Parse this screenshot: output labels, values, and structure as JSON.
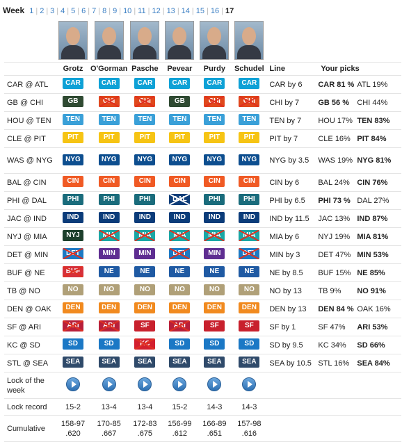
{
  "nav": {
    "label": "Week",
    "weeks": [
      "1",
      "2",
      "3",
      "4",
      "5",
      "6",
      "7",
      "8",
      "9",
      "10",
      "11",
      "12",
      "13",
      "14",
      "15",
      "16"
    ],
    "current": "17"
  },
  "headers": {
    "pickers": [
      "Grotz",
      "O'Gorman",
      "Pasche",
      "Pevear",
      "Purdy",
      "Schudel"
    ],
    "line": "Line",
    "your_picks": "Your picks"
  },
  "colors": {
    "CAR": "#0ea1d6",
    "GB": "#2f4a32",
    "CHI": "#e0481c",
    "TEN": "#3aa0d8",
    "PIT": "#f6c414",
    "NYG": "#0d4e8f",
    "CIN": "#f05a24",
    "PHI": "#1a6c7c",
    "DAL": "#0f3d78",
    "IND": "#0b3c7a",
    "NYJ": "#1c3f2c",
    "MIA": "#1aa7a5",
    "DET": "#1c79c4",
    "MIN": "#5e2d91",
    "BUF": "#d6303a",
    "NE": "#1f5aa3",
    "NO": "#b0a078",
    "DEN": "#f18a1f",
    "ARI": "#b81f3a",
    "SF": "#c8202d",
    "SD": "#1b78c5",
    "KC": "#d3202f",
    "SEA": "#2f4a6a"
  },
  "games": [
    {
      "label": "CAR @ ATL",
      "picks": [
        [
          "CAR",
          0
        ],
        [
          "CAR",
          0
        ],
        [
          "CAR",
          0
        ],
        [
          "CAR",
          0
        ],
        [
          "CAR",
          0
        ],
        [
          "CAR",
          0
        ]
      ],
      "line": "CAR by 6",
      "yp": [
        [
          "CAR 81 %",
          1
        ],
        [
          "ATL 19%",
          0
        ]
      ]
    },
    {
      "label": "GB @ CHI",
      "picks": [
        [
          "GB",
          0
        ],
        [
          "CHI",
          1
        ],
        [
          "CHI",
          1
        ],
        [
          "GB",
          0
        ],
        [
          "CHI",
          1
        ],
        [
          "CHI",
          1
        ]
      ],
      "line": "CHI by 7",
      "yp": [
        [
          "GB 56 %",
          1
        ],
        [
          "CHI 44%",
          0
        ]
      ]
    },
    {
      "label": "HOU @ TEN",
      "picks": [
        [
          "TEN",
          0
        ],
        [
          "TEN",
          0
        ],
        [
          "TEN",
          0
        ],
        [
          "TEN",
          0
        ],
        [
          "TEN",
          0
        ],
        [
          "TEN",
          0
        ]
      ],
      "line": "TEN by 7",
      "yp": [
        [
          "HOU 17%",
          0
        ],
        [
          "TEN 83%",
          1
        ]
      ]
    },
    {
      "label": "CLE @ PIT",
      "picks": [
        [
          "PIT",
          0
        ],
        [
          "PIT",
          0
        ],
        [
          "PIT",
          0
        ],
        [
          "PIT",
          0
        ],
        [
          "PIT",
          0
        ],
        [
          "PIT",
          0
        ]
      ],
      "line": "PIT by 7",
      "yp": [
        [
          "CLE 16%",
          0
        ],
        [
          "PIT 84%",
          1
        ]
      ]
    },
    {
      "label": "WAS @ NYG",
      "tall": true,
      "picks": [
        [
          "NYG",
          0
        ],
        [
          "NYG",
          0
        ],
        [
          "NYG",
          0
        ],
        [
          "NYG",
          0
        ],
        [
          "NYG",
          0
        ],
        [
          "NYG",
          0
        ]
      ],
      "line": "NYG by 3.5",
      "yp": [
        [
          "WAS 19%",
          0
        ],
        [
          "NYG 81%",
          1
        ]
      ]
    },
    {
      "label": "BAL @ CIN",
      "picks": [
        [
          "CIN",
          0
        ],
        [
          "CIN",
          0
        ],
        [
          "CIN",
          0
        ],
        [
          "CIN",
          0
        ],
        [
          "CIN",
          0
        ],
        [
          "CIN",
          0
        ]
      ],
      "line": "CIN by 6",
      "yp": [
        [
          "BAL 24%",
          0
        ],
        [
          "CIN 76%",
          1
        ]
      ]
    },
    {
      "label": "PHI @ DAL",
      "picks": [
        [
          "PHI",
          0
        ],
        [
          "PHI",
          0
        ],
        [
          "PHI",
          0
        ],
        [
          "DAL",
          1
        ],
        [
          "PHI",
          0
        ],
        [
          "PHI",
          0
        ]
      ],
      "line": "PHI by 6.5",
      "yp": [
        [
          "PHI 73 %",
          1
        ],
        [
          "DAL 27%",
          0
        ]
      ]
    },
    {
      "label": "JAC @ IND",
      "picks": [
        [
          "IND",
          0
        ],
        [
          "IND",
          0
        ],
        [
          "IND",
          0
        ],
        [
          "IND",
          0
        ],
        [
          "IND",
          0
        ],
        [
          "IND",
          0
        ]
      ],
      "line": "IND by 11.5",
      "yp": [
        [
          "JAC 13%",
          0
        ],
        [
          "IND 87%",
          1
        ]
      ]
    },
    {
      "label": "NYJ @ MIA",
      "picks": [
        [
          "NYJ",
          0
        ],
        [
          "MIA",
          1
        ],
        [
          "MIA",
          1
        ],
        [
          "MIA",
          1
        ],
        [
          "MIA",
          1
        ],
        [
          "MIA",
          1
        ]
      ],
      "line": "MIA by 6",
      "yp": [
        [
          "NYJ 19%",
          0
        ],
        [
          "MIA 81%",
          1
        ]
      ]
    },
    {
      "label": "DET @ MIN",
      "picks": [
        [
          "DET",
          1
        ],
        [
          "MIN",
          0
        ],
        [
          "MIN",
          0
        ],
        [
          "DET",
          1
        ],
        [
          "MIN",
          0
        ],
        [
          "DET",
          1
        ]
      ],
      "line": "MIN by 3",
      "yp": [
        [
          "DET 47%",
          0
        ],
        [
          "MIN 53%",
          1
        ]
      ]
    },
    {
      "label": "BUF @ NE",
      "picks": [
        [
          "BUF",
          1
        ],
        [
          "NE",
          0
        ],
        [
          "NE",
          0
        ],
        [
          "NE",
          0
        ],
        [
          "NE",
          0
        ],
        [
          "NE",
          0
        ]
      ],
      "line": "NE by 8.5",
      "yp": [
        [
          "BUF 15%",
          0
        ],
        [
          "NE 85%",
          1
        ]
      ]
    },
    {
      "label": "TB @ NO",
      "picks": [
        [
          "NO",
          0
        ],
        [
          "NO",
          0
        ],
        [
          "NO",
          0
        ],
        [
          "NO",
          0
        ],
        [
          "NO",
          0
        ],
        [
          "NO",
          0
        ]
      ],
      "line": "NO by 13",
      "yp": [
        [
          "TB 9%",
          0
        ],
        [
          "NO 91%",
          1
        ]
      ]
    },
    {
      "label": "DEN @ OAK",
      "picks": [
        [
          "DEN",
          0
        ],
        [
          "DEN",
          0
        ],
        [
          "DEN",
          0
        ],
        [
          "DEN",
          0
        ],
        [
          "DEN",
          0
        ],
        [
          "DEN",
          0
        ]
      ],
      "line": "DEN by 13",
      "yp": [
        [
          "DEN 84 %",
          1
        ],
        [
          "OAK 16%",
          0
        ]
      ]
    },
    {
      "label": "SF @ ARI",
      "picks": [
        [
          "ARI",
          1
        ],
        [
          "ARI",
          1
        ],
        [
          "SF",
          0
        ],
        [
          "ARI",
          1
        ],
        [
          "SF",
          0
        ],
        [
          "SF",
          0
        ]
      ],
      "line": "SF by 1",
      "yp": [
        [
          "SF 47%",
          0
        ],
        [
          "ARI 53%",
          1
        ]
      ]
    },
    {
      "label": "KC @ SD",
      "picks": [
        [
          "SD",
          0
        ],
        [
          "SD",
          0
        ],
        [
          "KC",
          1
        ],
        [
          "SD",
          0
        ],
        [
          "SD",
          0
        ],
        [
          "SD",
          0
        ]
      ],
      "line": "SD by 9.5",
      "yp": [
        [
          "KC 34%",
          0
        ],
        [
          "SD 66%",
          1
        ]
      ]
    },
    {
      "label": "STL @ SEA",
      "picks": [
        [
          "SEA",
          0
        ],
        [
          "SEA",
          0
        ],
        [
          "SEA",
          0
        ],
        [
          "SEA",
          0
        ],
        [
          "SEA",
          0
        ],
        [
          "SEA",
          0
        ]
      ],
      "line": "SEA by 10.5",
      "yp": [
        [
          "STL 16%",
          0
        ],
        [
          "SEA 84%",
          1
        ]
      ]
    }
  ],
  "footer": {
    "lock_label": "Lock of the week",
    "lock_record_label": "Lock record",
    "lock_records": [
      "15-2",
      "13-4",
      "13-4",
      "15-2",
      "14-3",
      "14-3"
    ],
    "cumulative_label": "Cumulative",
    "cumulative": [
      [
        "158-97",
        ".620"
      ],
      [
        "170-85",
        ".667"
      ],
      [
        "172-83",
        ".675"
      ],
      [
        "156-99",
        ".612"
      ],
      [
        "166-89",
        ".651"
      ],
      [
        "157-98",
        ".616"
      ]
    ]
  }
}
